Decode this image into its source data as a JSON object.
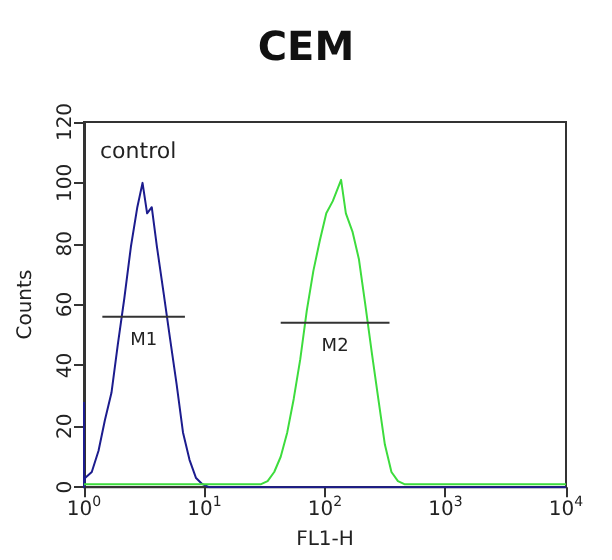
{
  "chart_data": {
    "type": "line",
    "title": "CEM",
    "xlabel": "FL1-H",
    "ylabel": "Counts",
    "log": "x",
    "grid": false,
    "marker": "none",
    "xlim": [
      1,
      10000
    ],
    "xticks": [
      {
        "value": 1,
        "label": "10$^{0}$"
      },
      {
        "value": 10,
        "label": "10$^{1}$"
      },
      {
        "value": 100,
        "label": "10$^{2}$"
      },
      {
        "value": 1000,
        "label": "10$^{3}$"
      },
      {
        "value": 10000,
        "label": "10$^{4}$"
      }
    ],
    "ylim": [
      0,
      120
    ],
    "yticks": [
      0,
      20,
      40,
      60,
      80,
      100,
      120
    ],
    "annotations": [
      "control"
    ],
    "series": [
      {
        "color": "#1c1c8e",
        "x": [
          1,
          1,
          1.02,
          1.16,
          1.32,
          1.49,
          1.69,
          1.91,
          2.16,
          2.45,
          2.77,
          3.06,
          3.34,
          3.65,
          4.03,
          4.57,
          5.17,
          5.86,
          6.63,
          7.51,
          8.51,
          9.6,
          10.9,
          100,
          1000,
          10000
        ],
        "values": [
          28,
          0,
          3,
          5,
          12,
          22,
          31,
          47,
          62,
          79,
          92,
          100,
          90,
          92,
          79,
          64,
          49,
          34,
          18,
          9,
          3,
          1,
          0,
          0,
          0,
          0
        ]
      },
      {
        "color": "#3ddc3d",
        "x": [
          1,
          10,
          29.5,
          33.4,
          37.9,
          42.9,
          48.6,
          55,
          62.3,
          70.6,
          80,
          90.5,
          102.5,
          116,
          136,
          149,
          169,
          191,
          216,
          245,
          277,
          314,
          356,
          403,
          456,
          1000,
          10000
        ],
        "values": [
          1,
          1,
          1,
          2,
          5,
          10,
          18,
          29,
          42,
          58,
          71,
          81,
          90,
          94,
          101,
          90,
          84,
          75,
          60,
          44,
          29,
          14,
          5,
          2,
          1,
          1,
          1
        ]
      },
      {
        "name": "M1",
        "color": "#333333",
        "x": [
          1.42,
          6.88
        ],
        "values": [
          56,
          56
        ]
      },
      {
        "name": "M2",
        "color": "#333333",
        "x": [
          42.9,
          343
        ],
        "values": [
          54,
          54
        ]
      }
    ]
  }
}
